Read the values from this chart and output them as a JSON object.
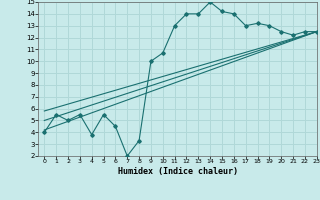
{
  "xlabel": "Humidex (Indice chaleur)",
  "xlim": [
    -0.5,
    23
  ],
  "ylim": [
    2,
    15
  ],
  "xticks": [
    0,
    1,
    2,
    3,
    4,
    5,
    6,
    7,
    8,
    9,
    10,
    11,
    12,
    13,
    14,
    15,
    16,
    17,
    18,
    19,
    20,
    21,
    22,
    23
  ],
  "yticks": [
    2,
    3,
    4,
    5,
    6,
    7,
    8,
    9,
    10,
    11,
    12,
    13,
    14,
    15
  ],
  "bg_color": "#c8eaea",
  "line_color": "#1a7070",
  "grid_color": "#b0d8d8",
  "data_x": [
    0,
    1,
    2,
    3,
    4,
    5,
    6,
    7,
    8,
    9,
    10,
    11,
    12,
    13,
    14,
    15,
    16,
    17,
    18,
    19,
    20,
    21,
    22,
    23
  ],
  "data_y": [
    4.0,
    5.5,
    5.0,
    5.5,
    3.8,
    5.5,
    4.5,
    2.0,
    3.3,
    10.0,
    10.7,
    13.0,
    14.0,
    14.0,
    15.0,
    14.2,
    14.0,
    13.0,
    13.2,
    13.0,
    12.5,
    12.2,
    12.5,
    12.5
  ],
  "trend1_x": [
    0,
    23
  ],
  "trend1_y": [
    4.2,
    12.5
  ],
  "trend2_x": [
    0,
    23
  ],
  "trend2_y": [
    5.0,
    12.5
  ],
  "trend3_x": [
    0,
    23
  ],
  "trend3_y": [
    5.8,
    12.5
  ]
}
